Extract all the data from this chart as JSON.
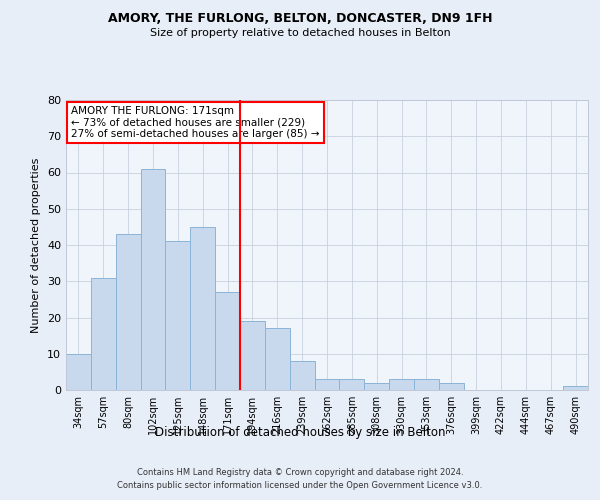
{
  "title1": "AMORY, THE FURLONG, BELTON, DONCASTER, DN9 1FH",
  "title2": "Size of property relative to detached houses in Belton",
  "xlabel": "Distribution of detached houses by size in Belton",
  "ylabel": "Number of detached properties",
  "categories": [
    "34sqm",
    "57sqm",
    "80sqm",
    "102sqm",
    "125sqm",
    "148sqm",
    "171sqm",
    "194sqm",
    "216sqm",
    "239sqm",
    "262sqm",
    "285sqm",
    "308sqm",
    "330sqm",
    "353sqm",
    "376sqm",
    "399sqm",
    "422sqm",
    "444sqm",
    "467sqm",
    "490sqm"
  ],
  "values": [
    10,
    31,
    43,
    61,
    41,
    45,
    27,
    19,
    17,
    8,
    3,
    3,
    2,
    3,
    3,
    2,
    0,
    0,
    0,
    0,
    1
  ],
  "bar_color": "#c9d9ed",
  "bar_edge_color": "#8ab4d8",
  "vline_index": 6.5,
  "vline_color": "red",
  "annotation_title": "AMORY THE FURLONG: 171sqm",
  "annotation_line1": "← 73% of detached houses are smaller (229)",
  "annotation_line2": "27% of semi-detached houses are larger (85) →",
  "annotation_box_color": "red",
  "ylim": [
    0,
    80
  ],
  "yticks": [
    0,
    10,
    20,
    30,
    40,
    50,
    60,
    70,
    80
  ],
  "footer1": "Contains HM Land Registry data © Crown copyright and database right 2024.",
  "footer2": "Contains public sector information licensed under the Open Government Licence v3.0.",
  "bg_color": "#e8eef8",
  "plot_bg_color": "#f0f5fc"
}
